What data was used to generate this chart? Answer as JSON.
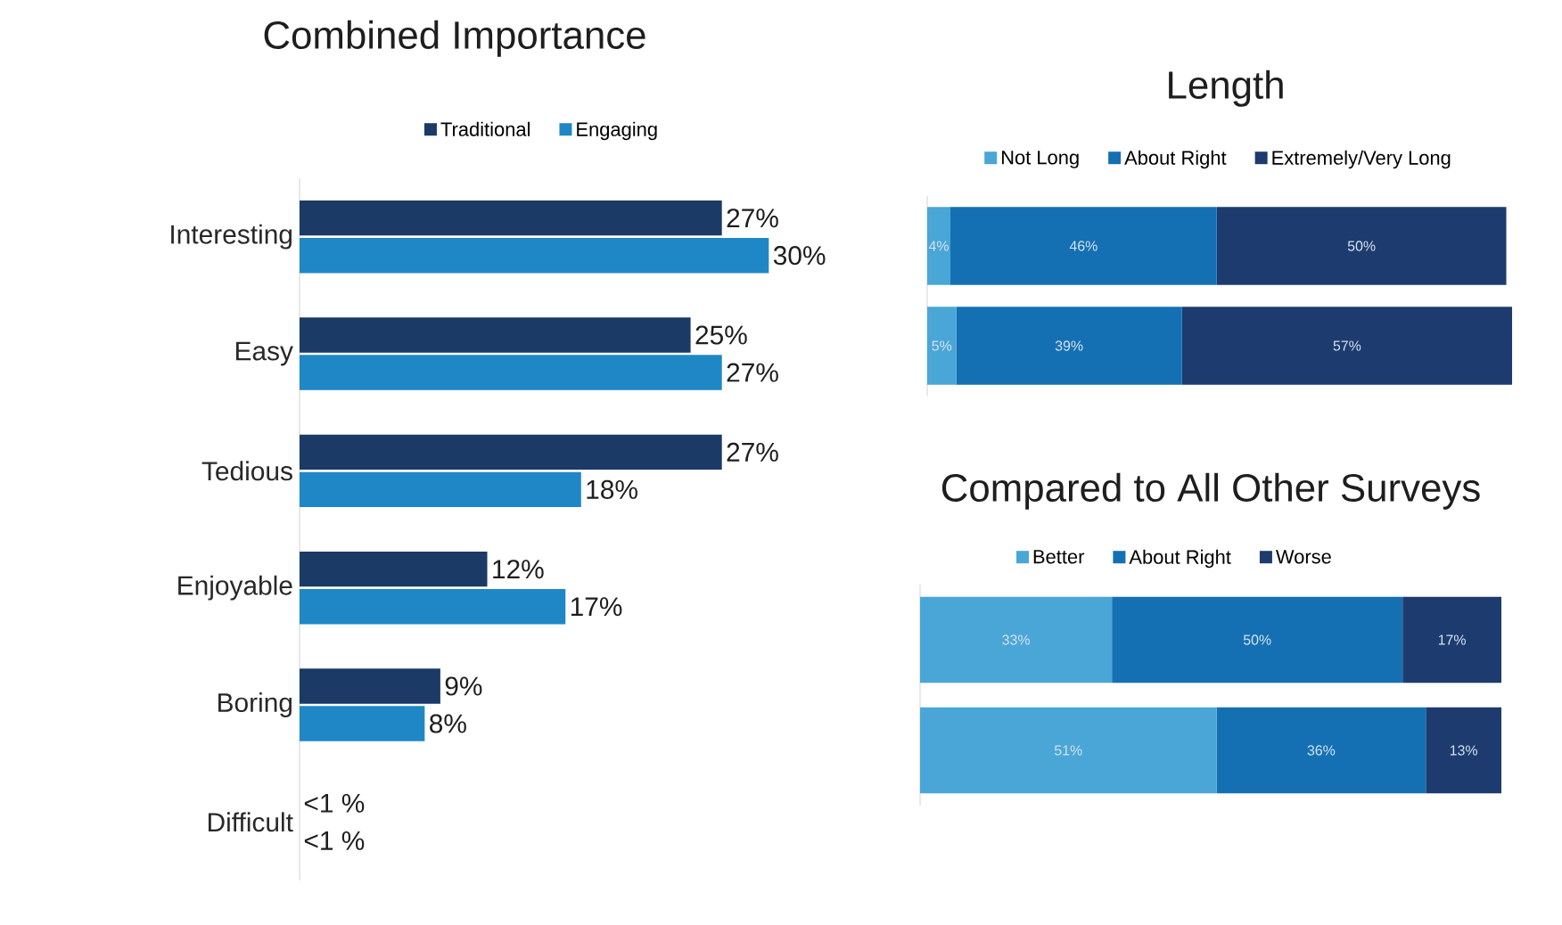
{
  "chart_data": [
    {
      "type": "bar",
      "title": "Combined Importance",
      "orientation": "horizontal",
      "legend": "top",
      "categories": [
        "Interesting",
        "Easy",
        "Tedious",
        "Enjoyable",
        "Boring",
        "Difficult"
      ],
      "series": [
        {
          "name": "Traditional",
          "color": "#1b3a66",
          "values": [
            27,
            25,
            27,
            12,
            9,
            null
          ],
          "value_labels": [
            "27%",
            "25%",
            "27%",
            "12%",
            "9%",
            "<1 %"
          ]
        },
        {
          "name": "Engaging",
          "color": "#1f87c6",
          "values": [
            30,
            27,
            18,
            17,
            8,
            null
          ],
          "value_labels": [
            "30%",
            "27%",
            "18%",
            "17%",
            "8%",
            "<1 %"
          ]
        }
      ]
    },
    {
      "type": "bar",
      "title": "Length",
      "orientation": "horizontal",
      "stacked": true,
      "legend": "top",
      "categories": [
        null,
        null
      ],
      "series": [
        {
          "name": "Not Long",
          "color": "#4aa6d6",
          "values": [
            4,
            5
          ],
          "value_labels": [
            "4%",
            "5%"
          ]
        },
        {
          "name": "About Right",
          "color": "#1570b3",
          "values": [
            46,
            39
          ],
          "value_labels": [
            "46%",
            "39%"
          ]
        },
        {
          "name": "Extremely/Very Long",
          "color": "#1d3b6e",
          "values": [
            50,
            57
          ],
          "value_labels": [
            "50%",
            "57%"
          ]
        }
      ]
    },
    {
      "type": "bar",
      "title": "Compared to All Other Surveys",
      "orientation": "horizontal",
      "stacked": true,
      "legend": "top",
      "categories": [
        null,
        null
      ],
      "series": [
        {
          "name": "Better",
          "color": "#4aa6d6",
          "values": [
            33,
            51
          ],
          "value_labels": [
            "33%",
            "51%"
          ]
        },
        {
          "name": "About Right",
          "color": "#1570b3",
          "values": [
            50,
            36
          ],
          "value_labels": [
            "50%",
            "36%"
          ]
        },
        {
          "name": "Worse",
          "color": "#1d3b6e",
          "values": [
            17,
            13
          ],
          "value_labels": [
            "17%",
            "13%"
          ]
        }
      ]
    }
  ]
}
